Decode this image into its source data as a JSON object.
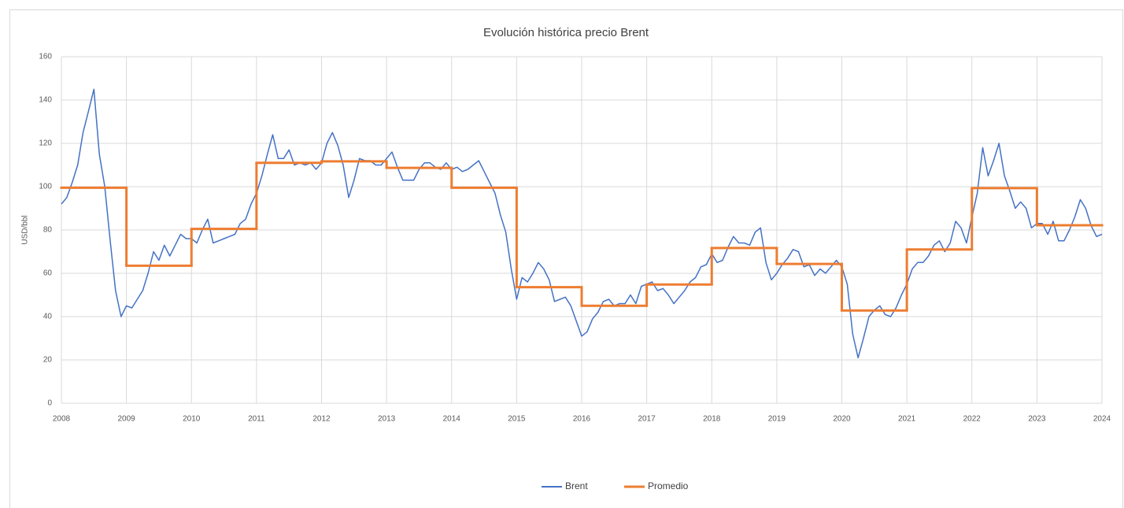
{
  "chart_data": {
    "type": "line",
    "title": "Evolución histórica precio Brent",
    "y_label": "USD/bbl",
    "xlim": [
      2008,
      2024
    ],
    "xticks": [
      2008,
      2009,
      2010,
      2011,
      2012,
      2013,
      2014,
      2015,
      2016,
      2017,
      2018,
      2019,
      2020,
      2021,
      2022,
      2023,
      2024
    ],
    "ylim": [
      0,
      160
    ],
    "yticks": [
      0,
      20,
      40,
      60,
      80,
      100,
      120,
      140,
      160
    ],
    "grid": true,
    "legend": "bottom",
    "series": [
      {
        "name": "Brent",
        "color": "#4472c4",
        "x": [
          2008,
          2008.083,
          2008.167,
          2008.25,
          2008.333,
          2008.417,
          2008.5,
          2008.583,
          2008.667,
          2008.75,
          2008.833,
          2008.917,
          2009,
          2009.083,
          2009.167,
          2009.25,
          2009.333,
          2009.417,
          2009.5,
          2009.583,
          2009.667,
          2009.75,
          2009.833,
          2009.917,
          2010,
          2010.083,
          2010.167,
          2010.25,
          2010.333,
          2010.417,
          2010.5,
          2010.583,
          2010.667,
          2010.75,
          2010.833,
          2010.917,
          2011,
          2011.083,
          2011.167,
          2011.25,
          2011.333,
          2011.417,
          2011.5,
          2011.583,
          2011.667,
          2011.75,
          2011.833,
          2011.917,
          2012,
          2012.083,
          2012.167,
          2012.25,
          2012.333,
          2012.417,
          2012.5,
          2012.583,
          2012.667,
          2012.75,
          2012.833,
          2012.917,
          2013,
          2013.083,
          2013.167,
          2013.25,
          2013.333,
          2013.417,
          2013.5,
          2013.583,
          2013.667,
          2013.75,
          2013.833,
          2013.917,
          2014,
          2014.083,
          2014.167,
          2014.25,
          2014.333,
          2014.417,
          2014.5,
          2014.583,
          2014.667,
          2014.75,
          2014.833,
          2014.917,
          2015,
          2015.083,
          2015.167,
          2015.25,
          2015.333,
          2015.417,
          2015.5,
          2015.583,
          2015.667,
          2015.75,
          2015.833,
          2015.917,
          2016,
          2016.083,
          2016.167,
          2016.25,
          2016.333,
          2016.417,
          2016.5,
          2016.583,
          2016.667,
          2016.75,
          2016.833,
          2016.917,
          2017,
          2017.083,
          2017.167,
          2017.25,
          2017.333,
          2017.417,
          2017.5,
          2017.583,
          2017.667,
          2017.75,
          2017.833,
          2017.917,
          2018,
          2018.083,
          2018.167,
          2018.25,
          2018.333,
          2018.417,
          2018.5,
          2018.583,
          2018.667,
          2018.75,
          2018.833,
          2018.917,
          2019,
          2019.083,
          2019.167,
          2019.25,
          2019.333,
          2019.417,
          2019.5,
          2019.583,
          2019.667,
          2019.75,
          2019.833,
          2019.917,
          2020,
          2020.083,
          2020.167,
          2020.25,
          2020.333,
          2020.417,
          2020.5,
          2020.583,
          2020.667,
          2020.75,
          2020.833,
          2020.917,
          2021,
          2021.083,
          2021.167,
          2021.25,
          2021.333,
          2021.417,
          2021.5,
          2021.583,
          2021.667,
          2021.75,
          2021.833,
          2021.917,
          2022,
          2022.083,
          2022.167,
          2022.25,
          2022.333,
          2022.417,
          2022.5,
          2022.583,
          2022.667,
          2022.75,
          2022.833,
          2022.917,
          2023,
          2023.083,
          2023.167,
          2023.25,
          2023.333,
          2023.417,
          2023.5,
          2023.583,
          2023.667,
          2023.75,
          2023.833,
          2023.917,
          2024
        ],
        "values": [
          92,
          95,
          102,
          110,
          125,
          135,
          145,
          115,
          100,
          75,
          52,
          40,
          45,
          44,
          48,
          52,
          60,
          70,
          66,
          73,
          68,
          73,
          78,
          76,
          76,
          74,
          80,
          85,
          74,
          75,
          76,
          77,
          78,
          83,
          85,
          92,
          97,
          105,
          115,
          124,
          113,
          113,
          117,
          110,
          111,
          110,
          111,
          108,
          111,
          120,
          125,
          119,
          110,
          95,
          103,
          113,
          112,
          112,
          110,
          110,
          113,
          116,
          109,
          103,
          103,
          103,
          108,
          111,
          111,
          109,
          108,
          111,
          108,
          109,
          107,
          108,
          110,
          112,
          107,
          102,
          97,
          87,
          79,
          62,
          48,
          58,
          56,
          60,
          65,
          62,
          57,
          47,
          48,
          49,
          45,
          38,
          31,
          33,
          39,
          42,
          47,
          48,
          45,
          46,
          46,
          50,
          46,
          54,
          55,
          56,
          52,
          53,
          50,
          46,
          49,
          52,
          56,
          58,
          63,
          64,
          69,
          65,
          66,
          72,
          77,
          74,
          74,
          73,
          79,
          81,
          65,
          57,
          60,
          64,
          67,
          71,
          70,
          63,
          64,
          59,
          62,
          60,
          63,
          66,
          63,
          55,
          32,
          21,
          30,
          40,
          43,
          45,
          41,
          40,
          44,
          50,
          55,
          62,
          65,
          65,
          68,
          73,
          75,
          70,
          74,
          84,
          81,
          74,
          86,
          97,
          118,
          105,
          112,
          120,
          105,
          98,
          90,
          93,
          90,
          81,
          83,
          83,
          78,
          84,
          75,
          75,
          80,
          86,
          94,
          90,
          82,
          77,
          78
        ]
      },
      {
        "name": "Promedio",
        "color": "#ed7d31",
        "step": true,
        "x": [
          2008,
          2009,
          2010,
          2011,
          2012,
          2013,
          2014,
          2015,
          2016,
          2017,
          2018,
          2019,
          2020,
          2021,
          2022,
          2023
        ],
        "values": [
          99.5,
          63.5,
          80.5,
          111,
          111.7,
          108.7,
          99.5,
          53.6,
          45,
          54.8,
          71.7,
          64.3,
          42.8,
          71,
          99.3,
          82.2
        ]
      }
    ]
  }
}
